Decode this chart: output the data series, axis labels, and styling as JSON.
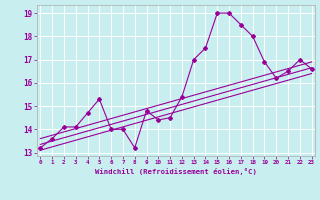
{
  "xlabel": "Windchill (Refroidissement éolien,°C)",
  "x_data": [
    0,
    1,
    2,
    3,
    4,
    5,
    6,
    7,
    8,
    9,
    10,
    11,
    12,
    13,
    14,
    15,
    16,
    17,
    18,
    19,
    20,
    21,
    22,
    23
  ],
  "y_data": [
    13.2,
    13.6,
    14.1,
    14.1,
    14.7,
    15.3,
    14.0,
    14.0,
    13.2,
    14.8,
    14.4,
    14.5,
    15.4,
    17.0,
    17.5,
    19.0,
    19.0,
    18.5,
    18.0,
    16.9,
    16.2,
    16.5,
    17.0,
    16.6
  ],
  "trend1": [
    13.1,
    16.4
  ],
  "trend2": [
    13.35,
    16.65
  ],
  "trend3": [
    13.6,
    16.9
  ],
  "line_color": "#990099",
  "bg_color": "#c8eef0",
  "grid_color": "#ffffff",
  "xlim": [
    -0.3,
    23.3
  ],
  "ylim": [
    12.85,
    19.35
  ],
  "yticks": [
    13,
    14,
    15,
    16,
    17,
    18,
    19
  ],
  "xticks": [
    0,
    1,
    2,
    3,
    4,
    5,
    6,
    7,
    8,
    9,
    10,
    11,
    12,
    13,
    14,
    15,
    16,
    17,
    18,
    19,
    20,
    21,
    22,
    23
  ]
}
